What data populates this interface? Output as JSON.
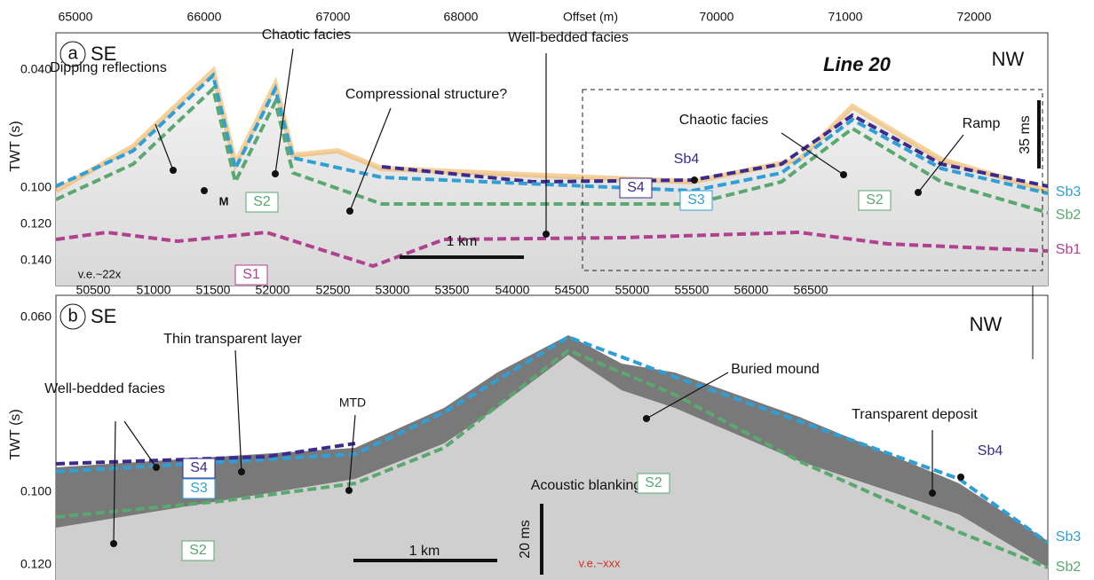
{
  "top_axis": {
    "label": "Offset (m)",
    "ticks": [
      "65000",
      "66000",
      "67000",
      "68000",
      "70000",
      "71000",
      "72000"
    ]
  },
  "panel_a": {
    "letter": "a",
    "left": "SE",
    "right": "NW",
    "line": "Line 20",
    "y_label": "TWT (s)",
    "yticks": [
      "0.040",
      "0.100",
      "0.120",
      "0.140"
    ],
    "annotations": [
      "Dipping reflections",
      "Chaotic facies",
      "Well-bedded facies",
      "Compressional structure?",
      "Chaotic facies",
      "Ramp",
      "M"
    ],
    "horizons": [
      "S4",
      "S3",
      "S2",
      "S2",
      "S1",
      "Sb4",
      "Sb3",
      "Sb2",
      "Sb1"
    ],
    "scale_bar": "1 km",
    "time_bar": "35 ms",
    "ve": "v.e.~22x"
  },
  "middle_axis": {
    "ticks": [
      "50500",
      "51000",
      "51500",
      "52000",
      "52500",
      "53000",
      "53500",
      "54000",
      "54500",
      "55000",
      "55500",
      "56000",
      "56500"
    ]
  },
  "panel_b": {
    "letter": "b",
    "left": "SE",
    "right": "NW",
    "y_label": "TWT (s)",
    "yticks": [
      "0.060",
      "0.100",
      "0.120"
    ],
    "annotations": [
      "Thin transparent layer",
      "Well-bedded facies",
      "MTD",
      "Acoustic blanking",
      "Buried mound",
      "Transparent deposit"
    ],
    "horizons": [
      "S4",
      "S3",
      "S2",
      "S2",
      "Sb4",
      "Sb3",
      "Sb2"
    ],
    "scale_bar": "1 km",
    "time_bar": "20 ms",
    "ve": "v.e.~xxx"
  }
}
